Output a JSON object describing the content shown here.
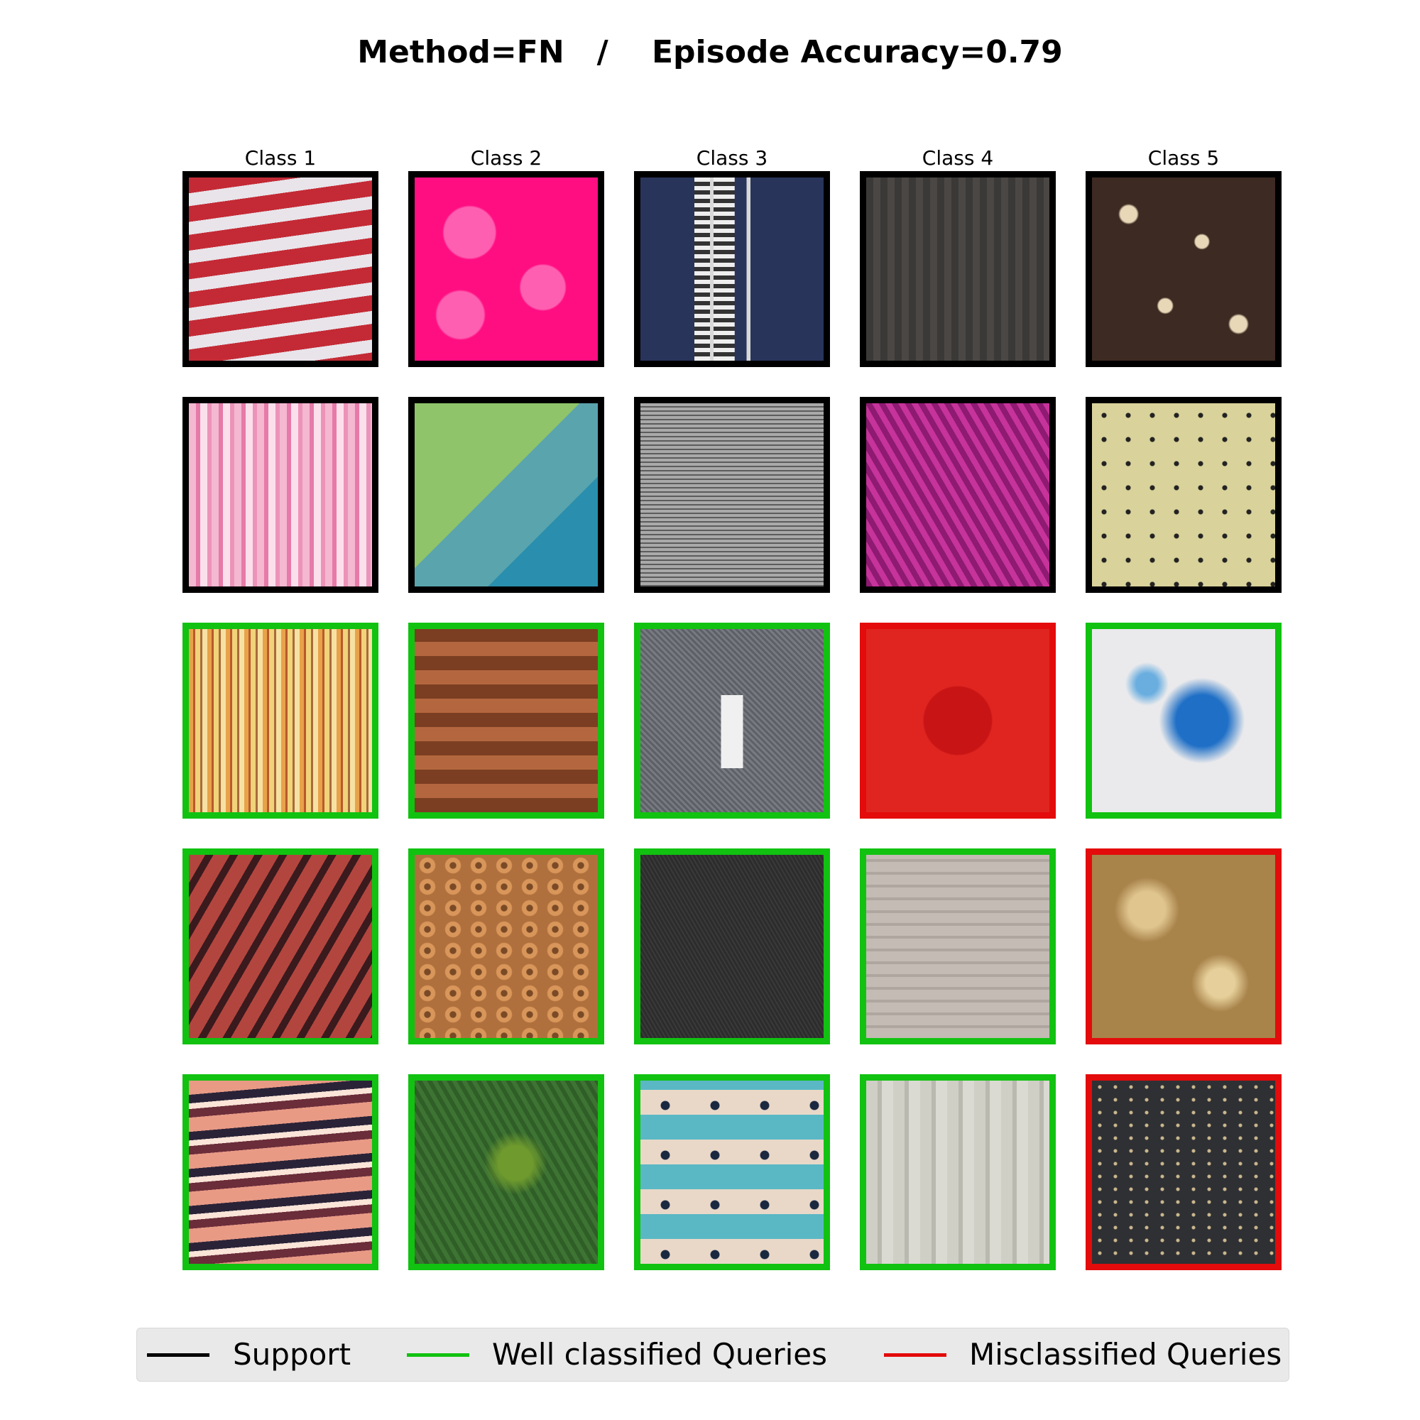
{
  "header": {
    "title": "Method=FN   /    Episode Accuracy=0.79"
  },
  "columns": [
    "Class 1",
    "Class 2",
    "Class 3",
    "Class 4",
    "Class 5"
  ],
  "rows": [
    [
      {
        "type": "support",
        "texture": "red-white-horizontal-stripes"
      },
      {
        "type": "support",
        "texture": "magenta-embossed"
      },
      {
        "type": "support",
        "texture": "navy-zipper"
      },
      {
        "type": "support",
        "texture": "dark-grey-knit"
      },
      {
        "type": "support",
        "texture": "chocolate-nut-brownie"
      }
    ],
    [
      {
        "type": "support",
        "texture": "pink-vertical-stripes"
      },
      {
        "type": "support",
        "texture": "green-teal-yarn"
      },
      {
        "type": "support",
        "texture": "grey-mesh"
      },
      {
        "type": "support",
        "texture": "purple-knit"
      },
      {
        "type": "support",
        "texture": "yellow-speckled-cake"
      }
    ],
    [
      {
        "type": "well",
        "texture": "orange-multi-stripes"
      },
      {
        "type": "well",
        "texture": "brown-scales"
      },
      {
        "type": "well",
        "texture": "grey-trousers"
      },
      {
        "type": "mis",
        "texture": "red-knit-apple"
      },
      {
        "type": "well",
        "texture": "blue-splatter"
      }
    ],
    [
      {
        "type": "well",
        "texture": "maroon-diagonal-stripes"
      },
      {
        "type": "well",
        "texture": "orange-honeycomb"
      },
      {
        "type": "well",
        "texture": "dark-brushed-surface"
      },
      {
        "type": "well",
        "texture": "beige-knit"
      },
      {
        "type": "mis",
        "texture": "tan-crumbly-surface"
      }
    ],
    [
      {
        "type": "well",
        "texture": "salmon-navy-stripes"
      },
      {
        "type": "well",
        "texture": "green-spiky-plant"
      },
      {
        "type": "well",
        "texture": "teal-floral-tiles"
      },
      {
        "type": "well",
        "texture": "cream-cable-knit"
      },
      {
        "type": "mis",
        "texture": "dark-speckled-asphalt"
      }
    ]
  ],
  "legend": {
    "support": "Support",
    "well": "Well classified Queries",
    "mis": "Misclassified Queries",
    "colors": {
      "support": "#000000",
      "well": "#11c211",
      "mis": "#e30b0b"
    }
  }
}
